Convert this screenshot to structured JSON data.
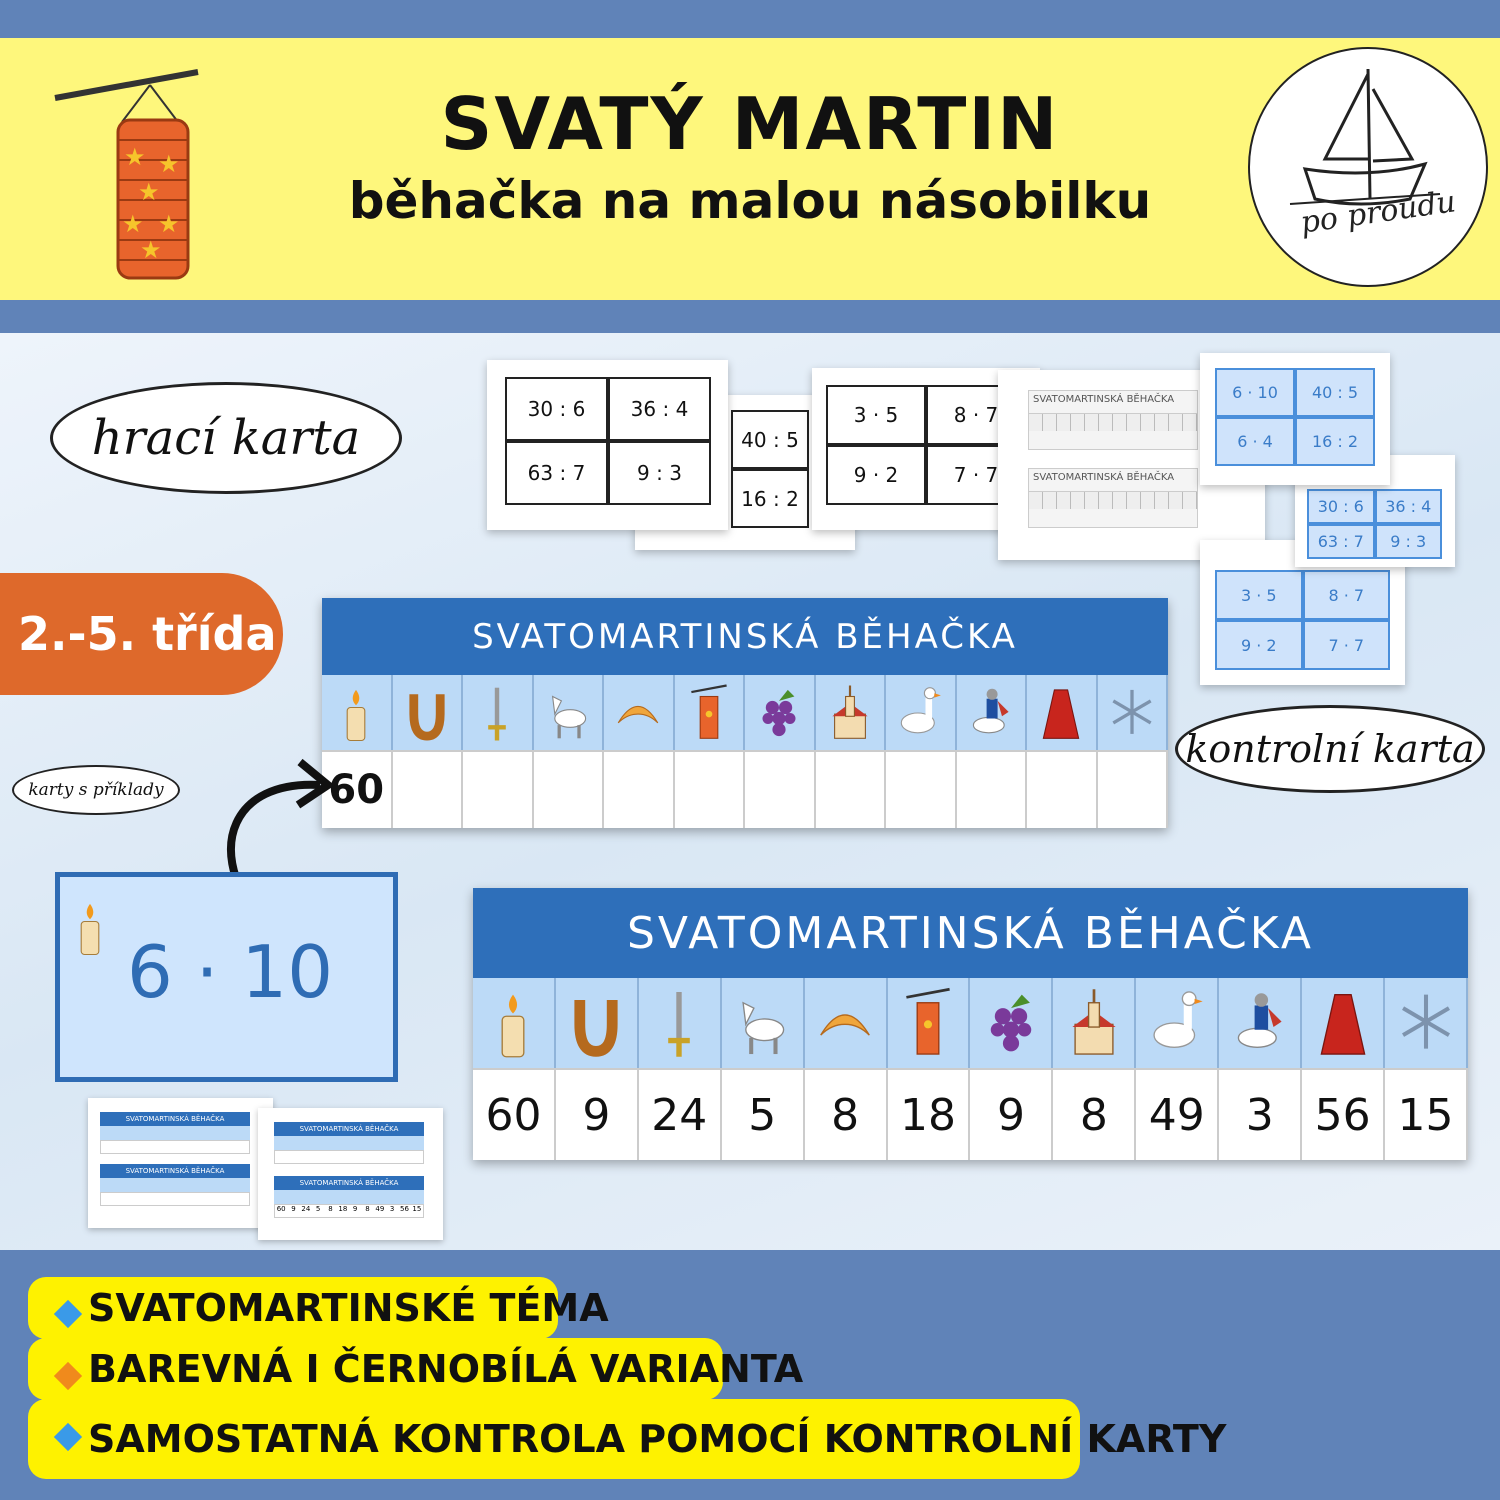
{
  "header": {
    "title": "SVATÝ MARTIN",
    "subtitle": "běhačka na malou násobilku",
    "logo_text": "po proudu"
  },
  "labels": {
    "game_card": "hrací karta",
    "control_card": "kontrolní karta",
    "example_cards": "karty s příklady",
    "grade": "2.-5. třída"
  },
  "board": {
    "title": "SVATOMARTINSKÁ BĚHAČKA",
    "icons": [
      "candle",
      "horseshoe",
      "sword",
      "horse",
      "croissant",
      "lantern",
      "grapes",
      "church",
      "goose",
      "knight",
      "cloak",
      "snowflake"
    ],
    "game_values": [
      "60",
      "",
      "",
      "",
      "",
      "",
      "",
      "",
      "",
      "",
      "",
      ""
    ],
    "control_values": [
      "60",
      "9",
      "24",
      "5",
      "8",
      "18",
      "9",
      "8",
      "49",
      "3",
      "56",
      "15"
    ]
  },
  "example_card": {
    "icon": "candle",
    "text": "6 · 10"
  },
  "printed_cards": {
    "bw_a": [
      "30 : 6",
      "36 : 4",
      "63 : 7",
      "9 : 3"
    ],
    "bw_b": [
      "40 : 5",
      "16 : 2"
    ],
    "bw_c": [
      "3 · 5",
      "8 · 7",
      "9 · 2",
      "7 · 7"
    ],
    "blue_e": [
      "6 · 10",
      "40 : 5",
      "6 · 4",
      "16 : 2"
    ],
    "blue_f": [
      "30 : 6",
      "36 : 4",
      "63 : 7",
      "9 : 3"
    ],
    "blue_g": [
      "3 · 5",
      "8 · 7",
      "9 · 2",
      "7 · 7"
    ]
  },
  "features": [
    {
      "text": "SVATOMARTINSKÉ TÉMA",
      "bullet_color": "#3a9ae8"
    },
    {
      "text": "BAREVNÁ I ČERNOBÍLÁ VARIANTA",
      "bullet_color": "#f08a1c"
    },
    {
      "text": "SAMOSTATNÁ KONTROLA POMOCÍ KONTROLNÍ KARTY",
      "bullet_color": "#3a9ae8"
    }
  ],
  "colors": {
    "header_bg": "#fef77c",
    "band": "#6083b8",
    "board_header": "#2e6fba",
    "grade_pill": "#de692b",
    "pill": "#fef200"
  }
}
